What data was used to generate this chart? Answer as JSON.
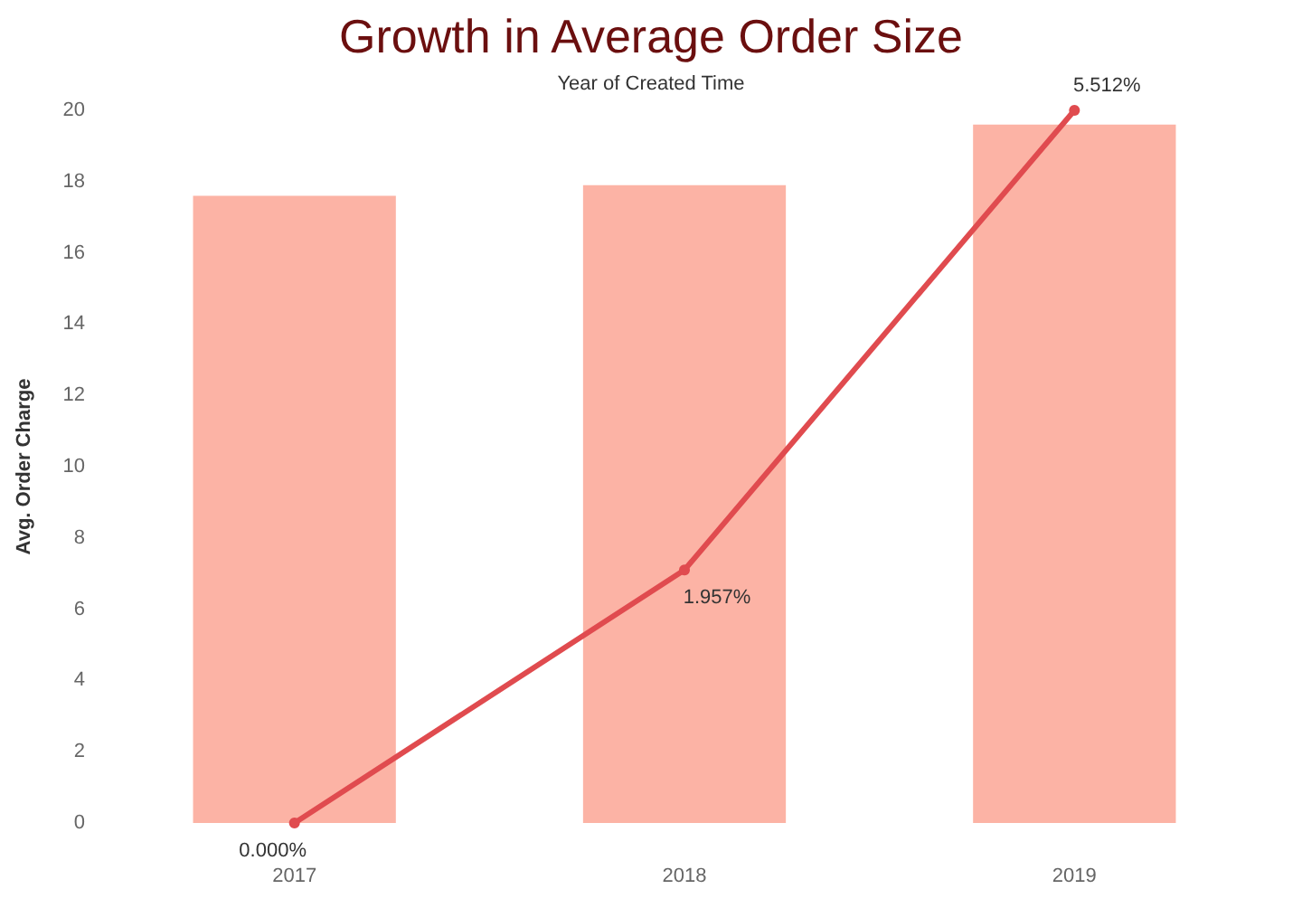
{
  "chart_data": {
    "type": "bar",
    "title": "Growth in Average Order Size",
    "xlabel": "Year of Created Time",
    "ylabel": "Avg. Order Charge",
    "categories": [
      "2017",
      "2018",
      "2019"
    ],
    "series": [
      {
        "color": "#fcb3a5",
        "values": [
          17.6,
          17.9,
          19.6
        ]
      },
      {
        "type": "line",
        "axis": "y2",
        "color": "#e04b4f",
        "values": [
          0,
          1.957,
          5.512
        ],
        "value_labels": [
          "0.000%",
          "1.957%",
          "5.512%"
        ]
      }
    ],
    "ylim": [
      0,
      20
    ],
    "yticks": [
      0,
      2,
      4,
      6,
      8,
      10,
      12,
      14,
      16,
      18,
      20
    ],
    "grid": false,
    "marker": "circle",
    "tick_labels": "xy"
  }
}
